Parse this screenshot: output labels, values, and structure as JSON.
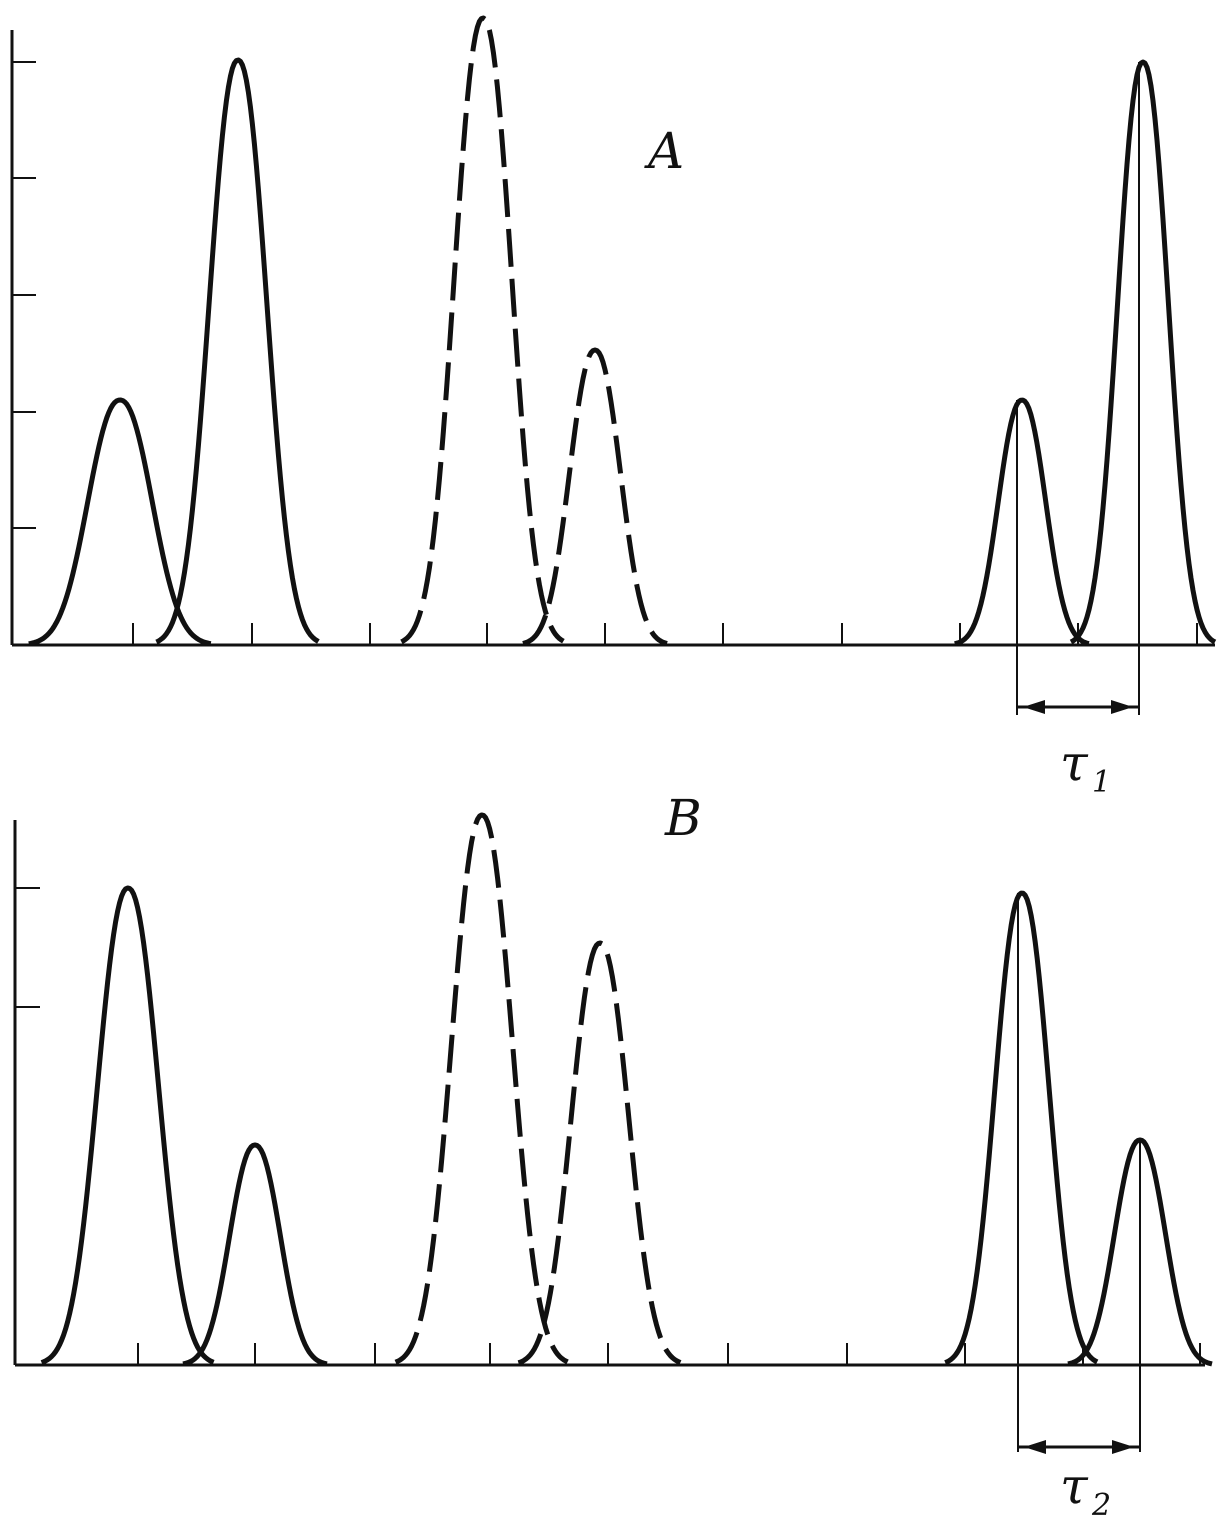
{
  "panel_a": {
    "label": "A",
    "interval": {
      "symbol": "τ",
      "subscript": "1"
    }
  },
  "panel_b": {
    "label": "B",
    "interval": {
      "symbol": "τ",
      "subscript": "2"
    }
  }
}
